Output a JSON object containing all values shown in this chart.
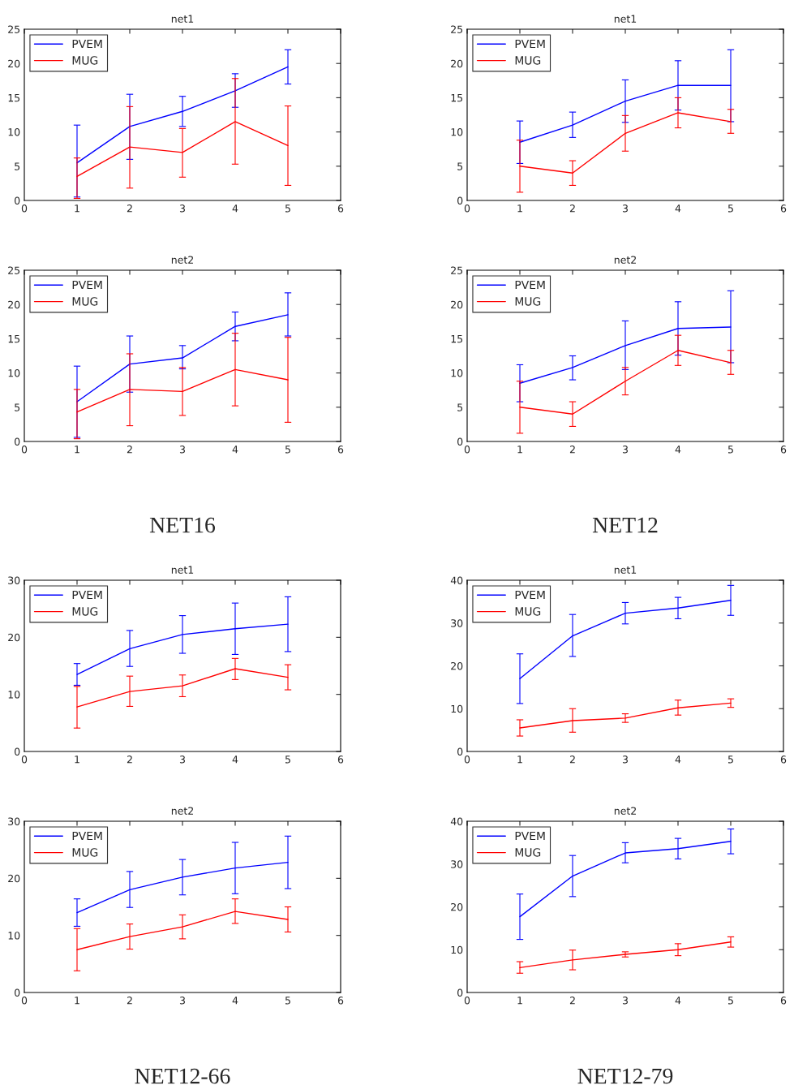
{
  "chart_data": [
    {
      "type": "line",
      "title": "net1",
      "x": [
        1,
        2,
        3,
        4,
        5
      ],
      "xlim": [
        0,
        6
      ],
      "xticks": [
        0,
        1,
        2,
        3,
        4,
        5,
        6
      ],
      "ylim": [
        0,
        25
      ],
      "yticks": [
        0,
        5,
        10,
        15,
        20,
        25
      ],
      "legend": "top left",
      "grid": false,
      "marker": "none",
      "line_style": "solid",
      "series": [
        {
          "name": "PVEM",
          "color": "#0000ff",
          "values": [
            5.5,
            10.8,
            13,
            16,
            19.5
          ],
          "errors": [
            [
              0.5,
              11
            ],
            [
              6,
              15.5
            ],
            [
              10.8,
              15.2
            ],
            [
              13.6,
              18.5
            ],
            [
              17,
              22
            ]
          ]
        },
        {
          "name": "MUG",
          "color": "#ff0000",
          "values": [
            3.5,
            7.8,
            7,
            11.5,
            8
          ],
          "errors": [
            [
              0.3,
              6.2
            ],
            [
              1.8,
              13.7
            ],
            [
              3.4,
              10.5
            ],
            [
              5.3,
              17.8
            ],
            [
              2.2,
              13.8
            ]
          ]
        }
      ]
    },
    {
      "type": "line",
      "title": "net1",
      "x": [
        1,
        2,
        3,
        4,
        5
      ],
      "xlim": [
        0,
        6
      ],
      "xticks": [
        0,
        1,
        2,
        3,
        4,
        5,
        6
      ],
      "ylim": [
        0,
        25
      ],
      "yticks": [
        0,
        5,
        10,
        15,
        20,
        25
      ],
      "legend": "top left",
      "grid": false,
      "marker": "none",
      "line_style": "solid",
      "series": [
        {
          "name": "PVEM",
          "color": "#0000ff",
          "values": [
            8.5,
            11,
            14.5,
            16.8,
            16.8
          ],
          "errors": [
            [
              5.4,
              11.6
            ],
            [
              9.2,
              12.9
            ],
            [
              11.4,
              17.6
            ],
            [
              13.2,
              20.4
            ],
            [
              11.5,
              22
            ]
          ]
        },
        {
          "name": "MUG",
          "color": "#ff0000",
          "values": [
            5,
            4,
            9.8,
            12.8,
            11.5
          ],
          "errors": [
            [
              1.2,
              8.8
            ],
            [
              2.2,
              5.8
            ],
            [
              7.2,
              12.4
            ],
            [
              10.6,
              15
            ],
            [
              9.8,
              13.3
            ]
          ]
        }
      ]
    },
    {
      "type": "line",
      "title": "net2",
      "x": [
        1,
        2,
        3,
        4,
        5
      ],
      "xlim": [
        0,
        6
      ],
      "xticks": [
        0,
        1,
        2,
        3,
        4,
        5,
        6
      ],
      "ylim": [
        0,
        25
      ],
      "yticks": [
        0,
        5,
        10,
        15,
        20,
        25
      ],
      "legend": "top left",
      "grid": false,
      "marker": "none",
      "line_style": "solid",
      "annotations": [
        "NET16"
      ],
      "series": [
        {
          "name": "PVEM",
          "color": "#0000ff",
          "values": [
            5.8,
            11.3,
            12.2,
            16.8,
            18.5
          ],
          "errors": [
            [
              0.6,
              11
            ],
            [
              7.2,
              15.4
            ],
            [
              10.6,
              14
            ],
            [
              14.7,
              18.9
            ],
            [
              15.4,
              21.7
            ]
          ]
        },
        {
          "name": "MUG",
          "color": "#ff0000",
          "values": [
            4.3,
            7.6,
            7.3,
            10.5,
            9
          ],
          "errors": [
            [
              0.4,
              7.6
            ],
            [
              2.3,
              12.8
            ],
            [
              3.8,
              10.8
            ],
            [
              5.2,
              15.8
            ],
            [
              2.8,
              15.2
            ]
          ]
        }
      ]
    },
    {
      "type": "line",
      "title": "net2",
      "x": [
        1,
        2,
        3,
        4,
        5
      ],
      "xlim": [
        0,
        6
      ],
      "xticks": [
        0,
        1,
        2,
        3,
        4,
        5,
        6
      ],
      "ylim": [
        0,
        25
      ],
      "yticks": [
        0,
        5,
        10,
        15,
        20,
        25
      ],
      "legend": "top left",
      "grid": false,
      "marker": "none",
      "line_style": "solid",
      "annotations": [
        "NET12"
      ],
      "series": [
        {
          "name": "PVEM",
          "color": "#0000ff",
          "values": [
            8.5,
            10.8,
            14,
            16.5,
            16.7
          ],
          "errors": [
            [
              5.8,
              11.2
            ],
            [
              9,
              12.5
            ],
            [
              10.5,
              17.6
            ],
            [
              12.6,
              20.4
            ],
            [
              11.5,
              22
            ]
          ]
        },
        {
          "name": "MUG",
          "color": "#ff0000",
          "values": [
            5,
            4,
            8.8,
            13.3,
            11.5
          ],
          "errors": [
            [
              1.2,
              8.8
            ],
            [
              2.2,
              5.8
            ],
            [
              6.8,
              10.8
            ],
            [
              11.1,
              15.5
            ],
            [
              9.8,
              13.3
            ]
          ]
        }
      ]
    },
    {
      "type": "line",
      "title": "net1",
      "x": [
        1,
        2,
        3,
        4,
        5
      ],
      "xlim": [
        0,
        6
      ],
      "xticks": [
        0,
        1,
        2,
        3,
        4,
        5,
        6
      ],
      "ylim": [
        0,
        30
      ],
      "yticks": [
        0,
        10,
        20,
        30
      ],
      "legend": "top left",
      "grid": false,
      "marker": "none",
      "line_style": "solid",
      "series": [
        {
          "name": "PVEM",
          "color": "#0000ff",
          "values": [
            13.5,
            18,
            20.5,
            21.5,
            22.3
          ],
          "errors": [
            [
              11.6,
              15.4
            ],
            [
              14.9,
              21.2
            ],
            [
              17.2,
              23.8
            ],
            [
              17,
              26
            ],
            [
              17.5,
              27.1
            ]
          ]
        },
        {
          "name": "MUG",
          "color": "#ff0000",
          "values": [
            7.8,
            10.5,
            11.5,
            14.5,
            13
          ],
          "errors": [
            [
              4.1,
              11.4
            ],
            [
              7.9,
              13.2
            ],
            [
              9.6,
              13.4
            ],
            [
              12.6,
              16.3
            ],
            [
              10.8,
              15.2
            ]
          ]
        }
      ]
    },
    {
      "type": "line",
      "title": "net1",
      "x": [
        1,
        2,
        3,
        4,
        5
      ],
      "xlim": [
        0,
        6
      ],
      "xticks": [
        0,
        1,
        2,
        3,
        4,
        5,
        6
      ],
      "ylim": [
        0,
        40
      ],
      "yticks": [
        0,
        10,
        20,
        30,
        40
      ],
      "legend": "top left",
      "grid": false,
      "marker": "none",
      "line_style": "solid",
      "series": [
        {
          "name": "PVEM",
          "color": "#0000ff",
          "values": [
            17,
            27,
            32.3,
            33.5,
            35.3
          ],
          "errors": [
            [
              11.2,
              22.8
            ],
            [
              22.2,
              32
            ],
            [
              29.8,
              34.8
            ],
            [
              31,
              36
            ],
            [
              31.8,
              38.8
            ]
          ]
        },
        {
          "name": "MUG",
          "color": "#ff0000",
          "values": [
            5.5,
            7.2,
            7.8,
            10.2,
            11.3
          ],
          "errors": [
            [
              3.6,
              7.4
            ],
            [
              4.5,
              10
            ],
            [
              6.8,
              8.8
            ],
            [
              8.5,
              12
            ],
            [
              10.3,
              12.3
            ]
          ]
        }
      ]
    },
    {
      "type": "line",
      "title": "net2",
      "x": [
        1,
        2,
        3,
        4,
        5
      ],
      "xlim": [
        0,
        6
      ],
      "xticks": [
        0,
        1,
        2,
        3,
        4,
        5,
        6
      ],
      "ylim": [
        0,
        30
      ],
      "yticks": [
        0,
        10,
        20,
        30
      ],
      "legend": "top left",
      "grid": false,
      "marker": "none",
      "line_style": "solid",
      "annotations": [
        "NET12-66"
      ],
      "series": [
        {
          "name": "PVEM",
          "color": "#0000ff",
          "values": [
            14,
            18,
            20.2,
            21.8,
            22.8
          ],
          "errors": [
            [
              11.6,
              16.4
            ],
            [
              14.9,
              21.2
            ],
            [
              17.1,
              23.3
            ],
            [
              17.3,
              26.3
            ],
            [
              18.2,
              27.4
            ]
          ]
        },
        {
          "name": "MUG",
          "color": "#ff0000",
          "values": [
            7.5,
            9.8,
            11.5,
            14.2,
            12.8
          ],
          "errors": [
            [
              3.8,
              11.2
            ],
            [
              7.6,
              12
            ],
            [
              9.4,
              13.6
            ],
            [
              12.1,
              16.4
            ],
            [
              10.6,
              15
            ]
          ]
        }
      ]
    },
    {
      "type": "line",
      "title": "net2",
      "x": [
        1,
        2,
        3,
        4,
        5
      ],
      "xlim": [
        0,
        6
      ],
      "xticks": [
        0,
        1,
        2,
        3,
        4,
        5,
        6
      ],
      "ylim": [
        0,
        40
      ],
      "yticks": [
        0,
        10,
        20,
        30,
        40
      ],
      "legend": "top left",
      "grid": false,
      "marker": "none",
      "line_style": "solid",
      "annotations": [
        "NET12-79"
      ],
      "series": [
        {
          "name": "PVEM",
          "color": "#0000ff",
          "values": [
            17.7,
            27.2,
            32.6,
            33.6,
            35.3
          ],
          "errors": [
            [
              12.4,
              23
            ],
            [
              22.4,
              32
            ],
            [
              30.3,
              35
            ],
            [
              31.2,
              36
            ],
            [
              32.4,
              38.2
            ]
          ]
        },
        {
          "name": "MUG",
          "color": "#ff0000",
          "values": [
            5.8,
            7.6,
            8.9,
            10,
            11.8
          ],
          "errors": [
            [
              4.5,
              7.2
            ],
            [
              5.3,
              9.9
            ],
            [
              8.3,
              9.5
            ],
            [
              8.6,
              11.4
            ],
            [
              10.6,
              13
            ]
          ]
        }
      ]
    }
  ]
}
